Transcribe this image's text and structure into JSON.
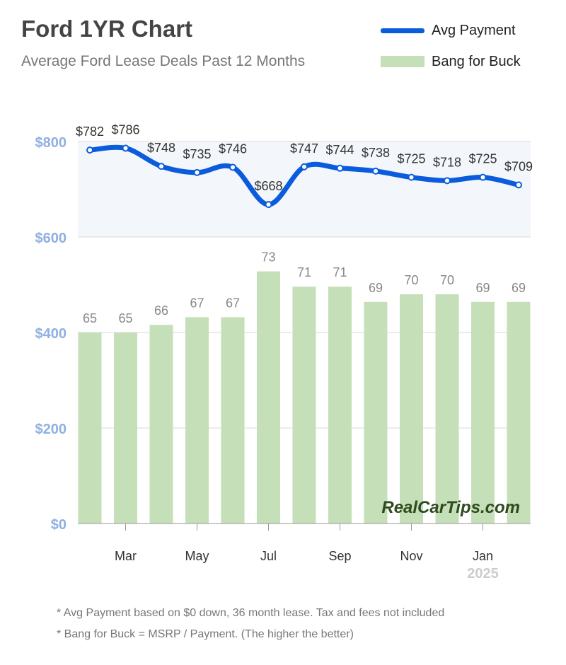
{
  "header": {
    "title": "Ford 1YR Chart",
    "subtitle": "Average Ford Lease Deals Past 12 Months"
  },
  "legend": {
    "items": [
      {
        "label": "Avg Payment",
        "color": "#0a5cdc"
      },
      {
        "label": "Bang for Buck",
        "color": "#c5dfb8"
      }
    ]
  },
  "chart_data": {
    "type": "bar+line",
    "series": [
      {
        "name": "Avg Payment",
        "type": "line",
        "axis": "left",
        "values": [
          782,
          786,
          748,
          735,
          746,
          668,
          747,
          744,
          738,
          725,
          718,
          725,
          709
        ],
        "labels": [
          "$782",
          "$786",
          "$748",
          "$735",
          "$746",
          "$668",
          "$747",
          "$744",
          "$738",
          "$725",
          "$718",
          "$725",
          "$709"
        ]
      },
      {
        "name": "Bang for Buck",
        "type": "bar",
        "values": [
          65,
          65,
          66,
          67,
          67,
          73,
          71,
          71,
          69,
          70,
          70,
          69,
          69
        ]
      }
    ],
    "x_ticks": [
      "Mar",
      "May",
      "Jul",
      "Sep",
      "Nov",
      "Jan"
    ],
    "x_year_label": "2025",
    "y_ticks": [
      "$0",
      "$200",
      "$400",
      "$600",
      "$800"
    ],
    "ylim": [
      0,
      800
    ],
    "bar_baseline": 40,
    "grid": true,
    "watermark": "RealCarTips.com",
    "colors": {
      "line": "#0a5cdc",
      "bar": "#c5dfb8",
      "highlight_band": "#f3f7fb",
      "y_tick": "#8fb0e0",
      "bar_label": "#888888",
      "year_label": "#cccccc"
    }
  },
  "footnotes": [
    "* Avg Payment based on $0 down, 36 month lease. Tax and fees not included",
    "* Bang for Buck = MSRP / Payment. (The higher the better)"
  ]
}
